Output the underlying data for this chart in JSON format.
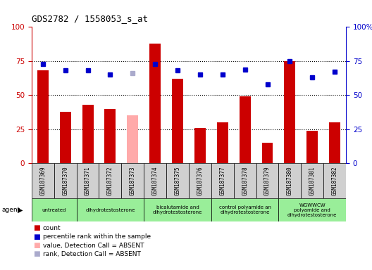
{
  "title": "GDS2782 / 1558053_s_at",
  "samples": [
    "GSM187369",
    "GSM187370",
    "GSM187371",
    "GSM187372",
    "GSM187373",
    "GSM187374",
    "GSM187375",
    "GSM187376",
    "GSM187377",
    "GSM187378",
    "GSM187379",
    "GSM187380",
    "GSM187381",
    "GSM187382"
  ],
  "count_values": [
    68,
    38,
    43,
    40,
    35,
    88,
    62,
    26,
    30,
    49,
    15,
    75,
    24,
    30
  ],
  "rank_values": [
    73,
    68,
    68,
    65,
    66,
    73,
    68,
    65,
    65,
    69,
    58,
    75,
    63,
    67
  ],
  "absent_mask": [
    false,
    false,
    false,
    false,
    true,
    false,
    false,
    false,
    false,
    false,
    false,
    false,
    false,
    false
  ],
  "groups": [
    {
      "label": "untreated",
      "start": 0,
      "end": 2
    },
    {
      "label": "dihydrotestosterone",
      "start": 2,
      "end": 5
    },
    {
      "label": "bicalutamide and\ndihydrotestosterone",
      "start": 5,
      "end": 8
    },
    {
      "label": "control polyamide an\ndihydrotestosterone",
      "start": 8,
      "end": 11
    },
    {
      "label": "WGWWCW\npolyamide and\ndihydrotestosterone",
      "start": 11,
      "end": 14
    }
  ],
  "group_edges": [
    0,
    2,
    5,
    8,
    11,
    14
  ],
  "bar_color_normal": "#cc0000",
  "bar_color_absent": "#ffaaaa",
  "rank_color_normal": "#0000cc",
  "rank_color_absent": "#aaaacc",
  "ylim": [
    0,
    100
  ],
  "dotted_lines": [
    25,
    50,
    75
  ],
  "legend_items": [
    {
      "color": "#cc0000",
      "label": "count"
    },
    {
      "color": "#0000cc",
      "label": "percentile rank within the sample"
    },
    {
      "color": "#ffaaaa",
      "label": "value, Detection Call = ABSENT"
    },
    {
      "color": "#aaaacc",
      "label": "rank, Detection Call = ABSENT"
    }
  ]
}
